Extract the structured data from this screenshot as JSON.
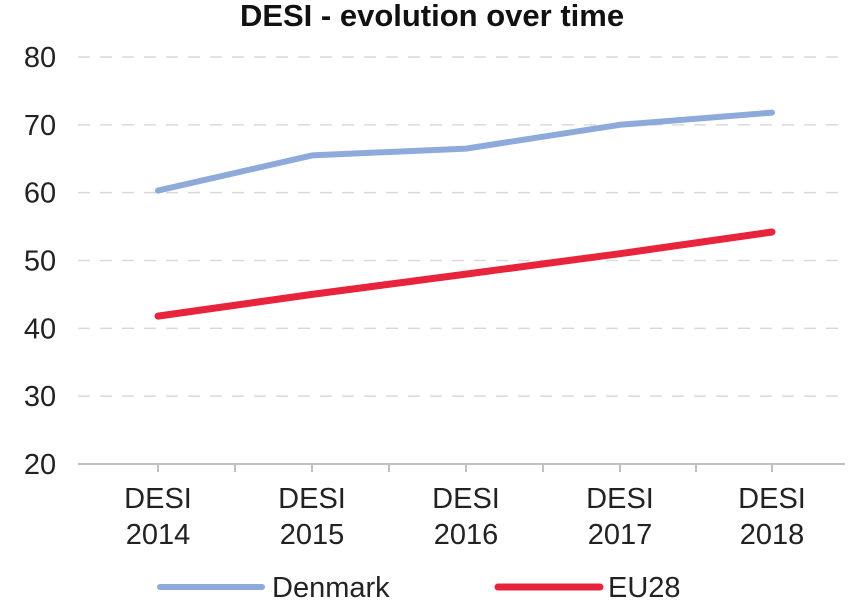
{
  "chart_data": {
    "type": "line",
    "title": "DESI - evolution over time",
    "categories": [
      [
        "DESI",
        "2014"
      ],
      [
        "DESI",
        "2015"
      ],
      [
        "DESI",
        "2016"
      ],
      [
        "DESI",
        "2017"
      ],
      [
        "DESI",
        "2018"
      ]
    ],
    "y_ticks": [
      "20",
      "30",
      "40",
      "50",
      "60",
      "70",
      "80"
    ],
    "ylim": [
      20,
      80
    ],
    "grid": true,
    "legend_position": "bottom",
    "series": [
      {
        "name": "Denmark",
        "color": "#8eaadb",
        "values": [
          60.3,
          65.5,
          66.5,
          70.0,
          71.8
        ]
      },
      {
        "name": "EU28",
        "color": "#e8243c",
        "values": [
          41.8,
          45.0,
          48.0,
          51.0,
          54.2
        ]
      }
    ]
  }
}
